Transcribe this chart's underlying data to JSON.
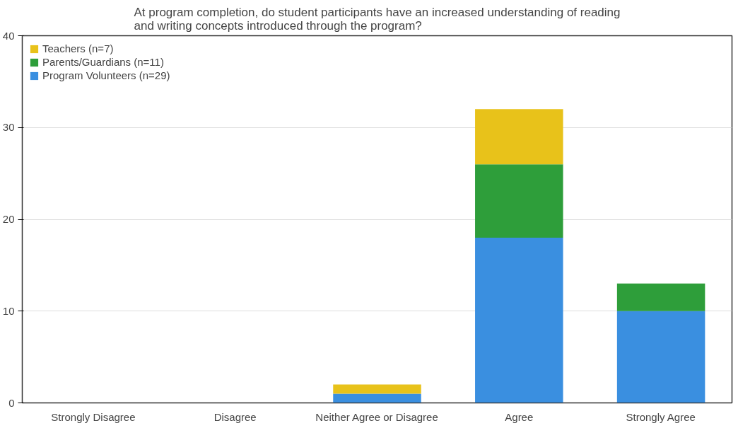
{
  "chart_data": {
    "type": "bar",
    "stacked": true,
    "title": "At program completion, do student participants have an increased understanding of reading and writing concepts introduced through the program?",
    "categories": [
      "Strongly Disagree",
      "Disagree",
      "Neither Agree or Disagree",
      "Agree",
      "Strongly Agree"
    ],
    "series": [
      {
        "name": "Program Volunteers (n=29)",
        "color": "#3a8fe0",
        "values": [
          0,
          0,
          1,
          18,
          10
        ]
      },
      {
        "name": "Parents/Guardians (n=11)",
        "color": "#2e9e3a",
        "values": [
          0,
          0,
          0,
          8,
          3
        ]
      },
      {
        "name": "Teachers (n=7)",
        "color": "#e8c21a",
        "values": [
          0,
          0,
          1,
          6,
          0
        ]
      }
    ],
    "ylim": [
      0,
      40
    ],
    "yticks": [
      0,
      10,
      20,
      30,
      40
    ],
    "grid": "y",
    "legend": "top left"
  }
}
